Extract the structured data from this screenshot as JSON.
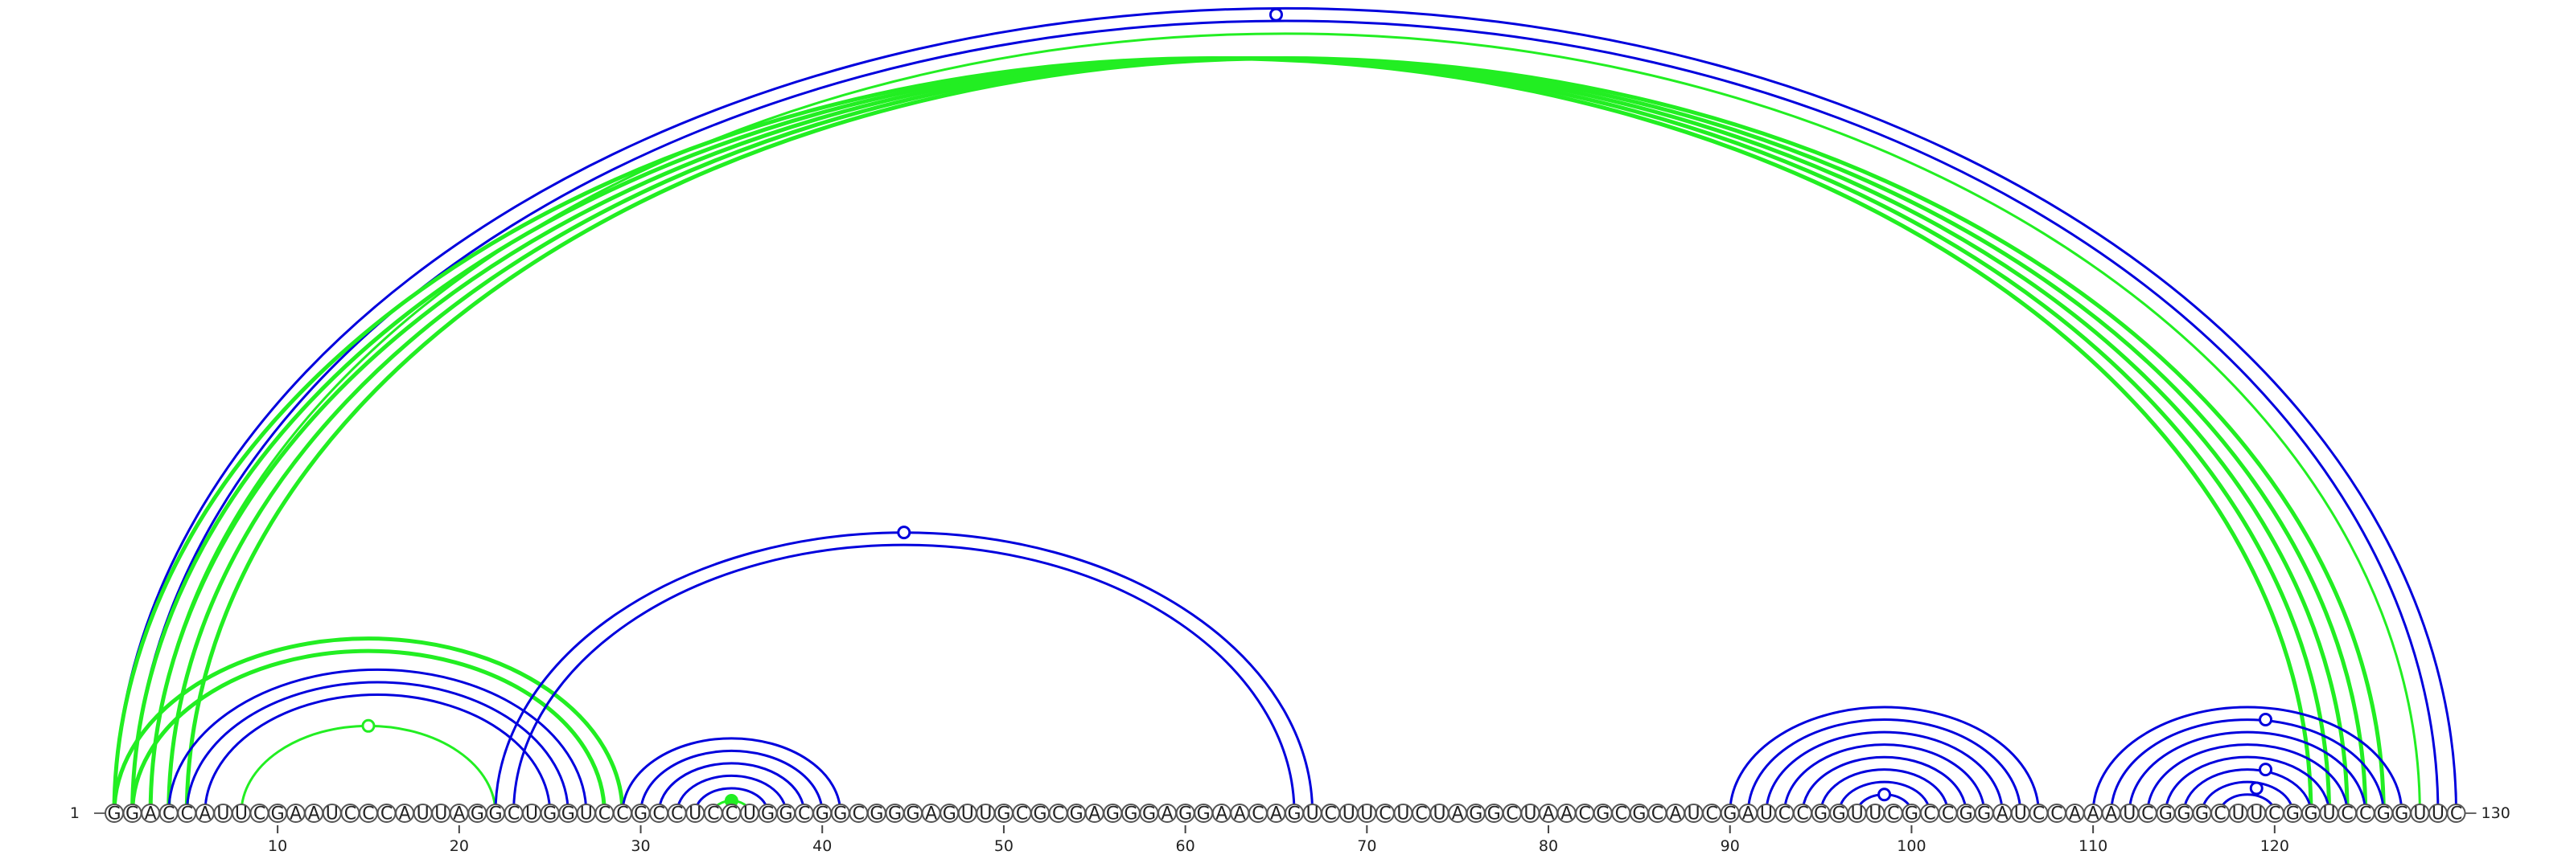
{
  "sequence": "GGACCAUUCGAAUCCCAUUAGGCUGGUCCGCCUCCUGGCGGCGGGAGUUGCGCGAGGGAGGAACAGUCUUCUCUAGGCUAACGCGCAUCGAUCCGGUUCGCCGGAUCCAAAUCGGGCUUCGGUCCGGUUC",
  "length": 130,
  "start_label": "1",
  "end_label": "130",
  "tick_labels": [
    "10",
    "20",
    "30",
    "40",
    "50",
    "60",
    "70",
    "80",
    "90",
    "100",
    "110",
    "120"
  ],
  "colors": {
    "blue": "#0000dd",
    "green": "#22ee22"
  },
  "arcs": [
    {
      "i": 1,
      "j": 130,
      "color": "blue",
      "width": 3
    },
    {
      "i": 2,
      "j": 129,
      "color": "blue",
      "width": 3
    },
    {
      "i": 1,
      "j": 122,
      "color": "green",
      "width": 5
    },
    {
      "i": 2,
      "j": 123,
      "color": "green",
      "width": 5
    },
    {
      "i": 3,
      "j": 124,
      "color": "green",
      "width": 5
    },
    {
      "i": 4,
      "j": 125,
      "color": "green",
      "width": 5
    },
    {
      "i": 5,
      "j": 126,
      "color": "green",
      "width": 5
    },
    {
      "i": 3,
      "j": 128,
      "color": "green",
      "width": 3
    },
    {
      "i": 1,
      "j": 29,
      "color": "green",
      "width": 5
    },
    {
      "i": 2,
      "j": 28,
      "color": "green",
      "width": 5
    },
    {
      "i": 4,
      "j": 27,
      "color": "blue",
      "width": 3
    },
    {
      "i": 5,
      "j": 26,
      "color": "blue",
      "width": 3
    },
    {
      "i": 6,
      "j": 25,
      "color": "blue",
      "width": 3
    },
    {
      "i": 8,
      "j": 22,
      "color": "green",
      "width": 3
    },
    {
      "i": 22,
      "j": 67,
      "color": "blue",
      "width": 3
    },
    {
      "i": 23,
      "j": 66,
      "color": "blue",
      "width": 3
    },
    {
      "i": 29,
      "j": 41,
      "color": "blue",
      "width": 3
    },
    {
      "i": 30,
      "j": 40,
      "color": "blue",
      "width": 3
    },
    {
      "i": 31,
      "j": 39,
      "color": "blue",
      "width": 3
    },
    {
      "i": 32,
      "j": 38,
      "color": "blue",
      "width": 3
    },
    {
      "i": 33,
      "j": 37,
      "color": "blue",
      "width": 3
    },
    {
      "i": 34,
      "j": 36,
      "color": "green",
      "width": 3
    },
    {
      "i": 90,
      "j": 107,
      "color": "blue",
      "width": 3
    },
    {
      "i": 91,
      "j": 106,
      "color": "blue",
      "width": 3
    },
    {
      "i": 92,
      "j": 105,
      "color": "blue",
      "width": 3
    },
    {
      "i": 93,
      "j": 104,
      "color": "blue",
      "width": 3
    },
    {
      "i": 94,
      "j": 103,
      "color": "blue",
      "width": 3
    },
    {
      "i": 95,
      "j": 102,
      "color": "blue",
      "width": 3
    },
    {
      "i": 96,
      "j": 101,
      "color": "blue",
      "width": 3
    },
    {
      "i": 97,
      "j": 100,
      "color": "blue",
      "width": 3
    },
    {
      "i": 110,
      "j": 127,
      "color": "blue",
      "width": 3
    },
    {
      "i": 111,
      "j": 126,
      "color": "blue",
      "width": 3
    },
    {
      "i": 112,
      "j": 125,
      "color": "blue",
      "width": 3
    },
    {
      "i": 113,
      "j": 124,
      "color": "blue",
      "width": 3
    },
    {
      "i": 114,
      "j": 123,
      "color": "blue",
      "width": 3
    },
    {
      "i": 115,
      "j": 122,
      "color": "blue",
      "width": 3
    },
    {
      "i": 116,
      "j": 121,
      "color": "blue",
      "width": 3
    },
    {
      "i": 117,
      "j": 120,
      "color": "blue",
      "width": 3
    }
  ],
  "markers": [
    {
      "i": 1,
      "j": 129,
      "color": "blue",
      "filled": false
    },
    {
      "i": 22,
      "j": 67,
      "color": "blue",
      "filled": false
    },
    {
      "i": 8,
      "j": 22,
      "color": "green",
      "filled": false
    },
    {
      "i": 34,
      "j": 36,
      "color": "green",
      "filled": true
    },
    {
      "i": 97,
      "j": 100,
      "color": "blue",
      "filled": false
    },
    {
      "i": 112,
      "j": 127,
      "color": "blue",
      "filled": false
    },
    {
      "i": 116,
      "j": 123,
      "color": "blue",
      "filled": false
    },
    {
      "i": 117,
      "j": 121,
      "color": "blue",
      "filled": false
    }
  ]
}
